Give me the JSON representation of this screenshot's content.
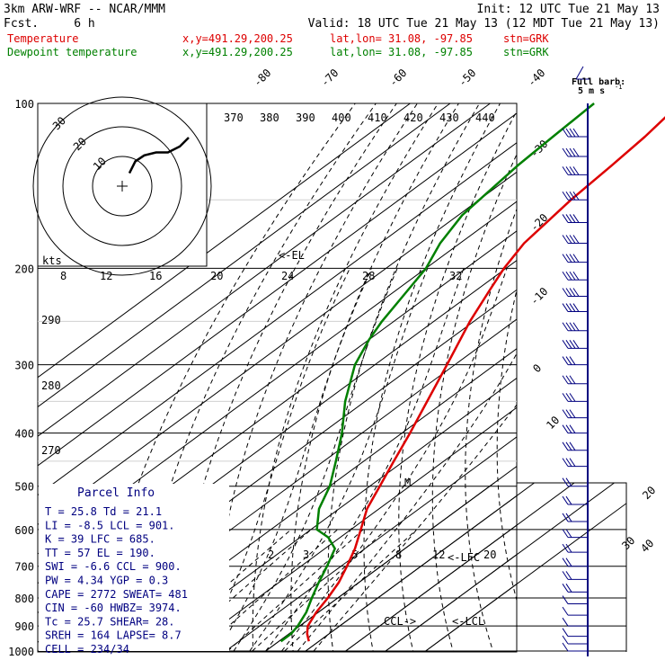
{
  "header": {
    "left_line1": "3km ARW-WRF -- NCAR/MMM",
    "left_line2": "Fcst.     6 h",
    "init": "Init: 12 UTC Tue 21 May 13",
    "valid": "Valid: 18 UTC Tue 21 May 13 (12 MDT Tue 21 May 13)"
  },
  "legend": [
    {
      "name": "Temperature",
      "color": "#dd0000",
      "xy": "x,y=491.29,200.25",
      "latlon": "lat,lon= 31.08, -97.85",
      "stn": "stn=GRK"
    },
    {
      "name": "Dewpoint temperature",
      "color": "#008000",
      "xy": "x,y=491.29,200.25",
      "latlon": "lat,lon= 31.08, -97.85",
      "stn": "stn=GRK"
    }
  ],
  "barb_key": {
    "line1": "Full barb:",
    "line2": "5 m s"
  },
  "hodograph": {
    "units": "kts",
    "ring_labels": [
      "10",
      "20",
      "30"
    ]
  },
  "parcel_info": {
    "title": "Parcel Info",
    "rows": [
      "T  =    25.8  Td =  21.1",
      "LI =    -8.5  LCL =  901.",
      "K  =      39  LFC =  685.",
      "TT =      57  EL  =  190.",
      "SWI =   -6.6  CCL =  900.",
      "PW =    4.34  YGP =   0.3",
      "CAPE =  2772  SWEAT=  481",
      "CIN =    -60  HWBZ= 3974.",
      "Tc =    25.7  SHEAR=  28.",
      "SREH =   164  LAPSE=  8.7",
      "CELL = 234/34"
    ]
  },
  "chart_data": {
    "type": "line",
    "chart_kind": "skew-T log-p sounding",
    "y_axis": {
      "label": "pressure (hPa)",
      "scale": "log",
      "range": [
        1000,
        100
      ],
      "ticks": [
        100,
        200,
        300,
        400,
        500,
        600,
        700,
        800,
        900,
        1000
      ]
    },
    "isotherm_labels": [
      "-80",
      "-70",
      "-60",
      "-50",
      "-40",
      "-30",
      "-20",
      "-10",
      "0",
      "10",
      "20",
      "30",
      "40"
    ],
    "theta_labels": [
      "370",
      "380",
      "390",
      "400",
      "410",
      "420",
      "430",
      "440"
    ],
    "theta_e_labels": [
      "290",
      "280",
      "270"
    ],
    "mixing_ratio_labels": [
      "2",
      "3",
      "5",
      "8",
      "12",
      "20"
    ],
    "mixing_ratio_labels_upper": [
      "8",
      "12",
      "16",
      "20",
      "24",
      "28",
      "32"
    ],
    "level_markers": [
      "<-EL",
      "<-LFC",
      "<-LCL",
      "CCL->"
    ],
    "series": [
      {
        "name": "Temperature",
        "color": "#dd0000",
        "points": [
          [
            960,
            27.5
          ],
          [
            930,
            24.5
          ],
          [
            900,
            22.0
          ],
          [
            850,
            19.5
          ],
          [
            800,
            17.5
          ],
          [
            750,
            15.0
          ],
          [
            700,
            11.5
          ],
          [
            650,
            7.5
          ],
          [
            600,
            2.5
          ],
          [
            550,
            -3.0
          ],
          [
            500,
            -7.5
          ],
          [
            450,
            -12.5
          ],
          [
            400,
            -18.0
          ],
          [
            350,
            -24.5
          ],
          [
            300,
            -32.0
          ],
          [
            250,
            -41.0
          ],
          [
            220,
            -46.5
          ],
          [
            200,
            -50.5
          ],
          [
            180,
            -54.0
          ],
          [
            150,
            -57.0
          ],
          [
            130,
            -58.5
          ],
          [
            115,
            -60.0
          ],
          [
            100,
            -62.5
          ]
        ]
      },
      {
        "name": "Dewpoint temperature",
        "color": "#008000",
        "points": [
          [
            960,
            20.5
          ],
          [
            930,
            20.5
          ],
          [
            900,
            19.5
          ],
          [
            850,
            17.0
          ],
          [
            800,
            13.5
          ],
          [
            750,
            10.0
          ],
          [
            700,
            6.5
          ],
          [
            650,
            2.5
          ],
          [
            620,
            -3.0
          ],
          [
            600,
            -8.5
          ],
          [
            550,
            -15.0
          ],
          [
            500,
            -20.0
          ],
          [
            450,
            -27.0
          ],
          [
            400,
            -35.0
          ],
          [
            350,
            -45.0
          ],
          [
            300,
            -55.0
          ],
          [
            270,
            -60.0
          ],
          [
            250,
            -63.0
          ],
          [
            220,
            -67.0
          ],
          [
            200,
            -70.0
          ],
          [
            180,
            -75.0
          ],
          [
            160,
            -79.0
          ],
          [
            130,
            -82.0
          ],
          [
            115,
            -83.0
          ],
          [
            100,
            -84.0
          ]
        ]
      }
    ],
    "hodograph_trace": [
      [
        0,
        8
      ],
      [
        2,
        12
      ],
      [
        5,
        14
      ],
      [
        9,
        15
      ],
      [
        13,
        15
      ],
      [
        17,
        17
      ],
      [
        20,
        20
      ]
    ]
  }
}
